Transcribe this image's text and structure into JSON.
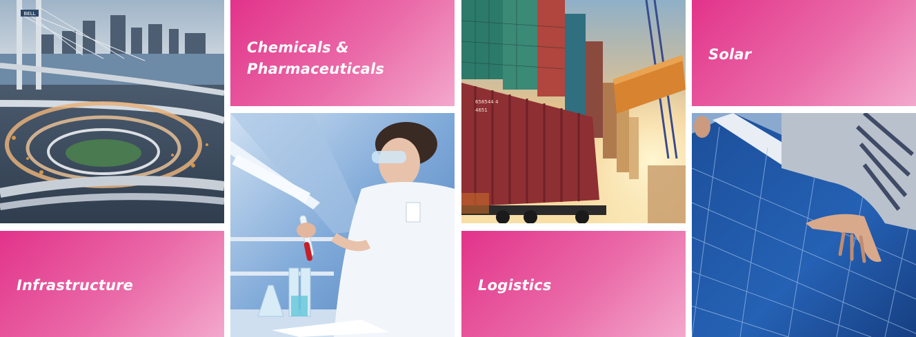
{
  "tiles": {
    "chemicals": {
      "line1": "Chemicals &",
      "line2": "Pharmaceuticals"
    },
    "solar": {
      "label": "Solar"
    },
    "infrastructure": {
      "label": "Infrastructure"
    },
    "logistics": {
      "label": "Logistics"
    }
  },
  "photos": {
    "infrastructure": {
      "sign_text": "BELL"
    },
    "logistics": {
      "container_text_1": "658544 4",
      "container_text_2": "4651"
    }
  },
  "colors": {
    "pink_start": "#e2338a",
    "pink_mid": "#ea6aa8",
    "pink_end": "#f3a8cc"
  }
}
